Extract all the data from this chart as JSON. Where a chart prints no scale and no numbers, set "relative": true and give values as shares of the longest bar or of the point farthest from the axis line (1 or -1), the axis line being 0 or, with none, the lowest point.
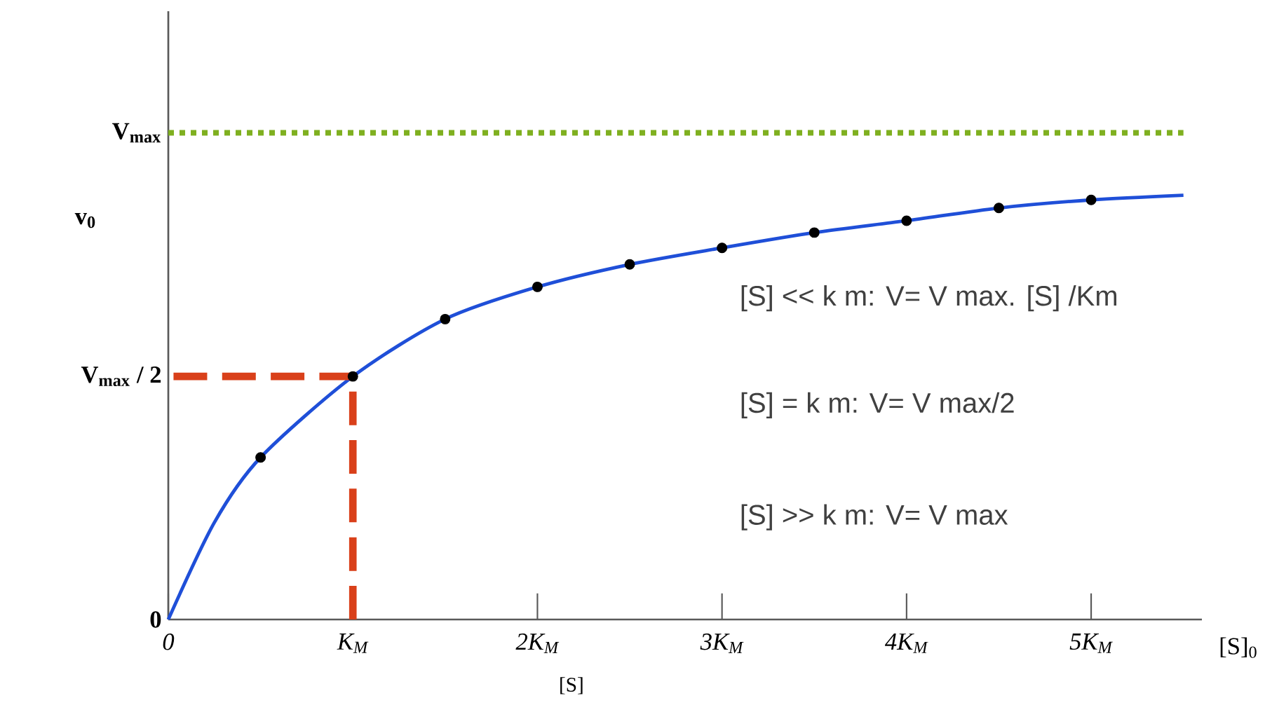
{
  "chart_data": {
    "type": "line",
    "relative": true,
    "xlabel": "[S]$_{0}$",
    "ylabel": "v$_{0}$",
    "xlim": [
      0,
      5.6
    ],
    "xticks": [
      0,
      {
        "value": 1,
        "label": "K$_{M}$"
      },
      {
        "value": 2,
        "label": "2K$_{M}$"
      },
      {
        "value": 3,
        "label": "3K$_{M}$"
      },
      {
        "value": 4,
        "label": "4K$_{M}$"
      },
      {
        "value": 5,
        "label": "5K$_{M}$"
      }
    ],
    "series": [
      {
        "type": "line",
        "color": "#1f4fd8",
        "marker": "none",
        "x": [
          0,
          0.25,
          0.5,
          1,
          1.5,
          2,
          2.5,
          3,
          3.5,
          4,
          4.5,
          5,
          5.5
        ],
        "values": [
          0,
          0.229,
          0.382,
          0.573,
          0.708,
          0.784,
          0.837,
          0.876,
          0.912,
          0.94,
          0.97,
          0.989,
          1
        ]
      },
      {
        "type": "scatter",
        "color": "#000000",
        "marker": "circle",
        "x": [
          0.5,
          1,
          1.5,
          2,
          2.5,
          3,
          3.5,
          4,
          4.5,
          5
        ],
        "values": [
          0.382,
          0.573,
          0.708,
          0.784,
          0.837,
          0.876,
          0.912,
          0.94,
          0.97,
          0.989
        ]
      },
      {
        "type": "line",
        "color": "#d9401a",
        "marker": "none",
        "line_style": "dashed",
        "x": [
          1,
          1,
          0
        ],
        "values": [
          0,
          0.573,
          0.573
        ]
      }
    ],
    "ref_lines": [
      {
        "axis": "y",
        "value": 1.147,
        "label": "V$_{max}$",
        "color": "#7fb020",
        "line_style": "dotted"
      }
    ],
    "annotations": [
      "[S] << k m:  V= V max. [S] /Km",
      "[S] = k m:  V= V max/2",
      "[S] >>  k m:  V= V max",
      "[S]",
      {
        "text": "V$_{max}$ / 2",
        "x": 0,
        "y": 0.573
      },
      {
        "text": "0",
        "x": 0,
        "y": 0
      }
    ]
  }
}
